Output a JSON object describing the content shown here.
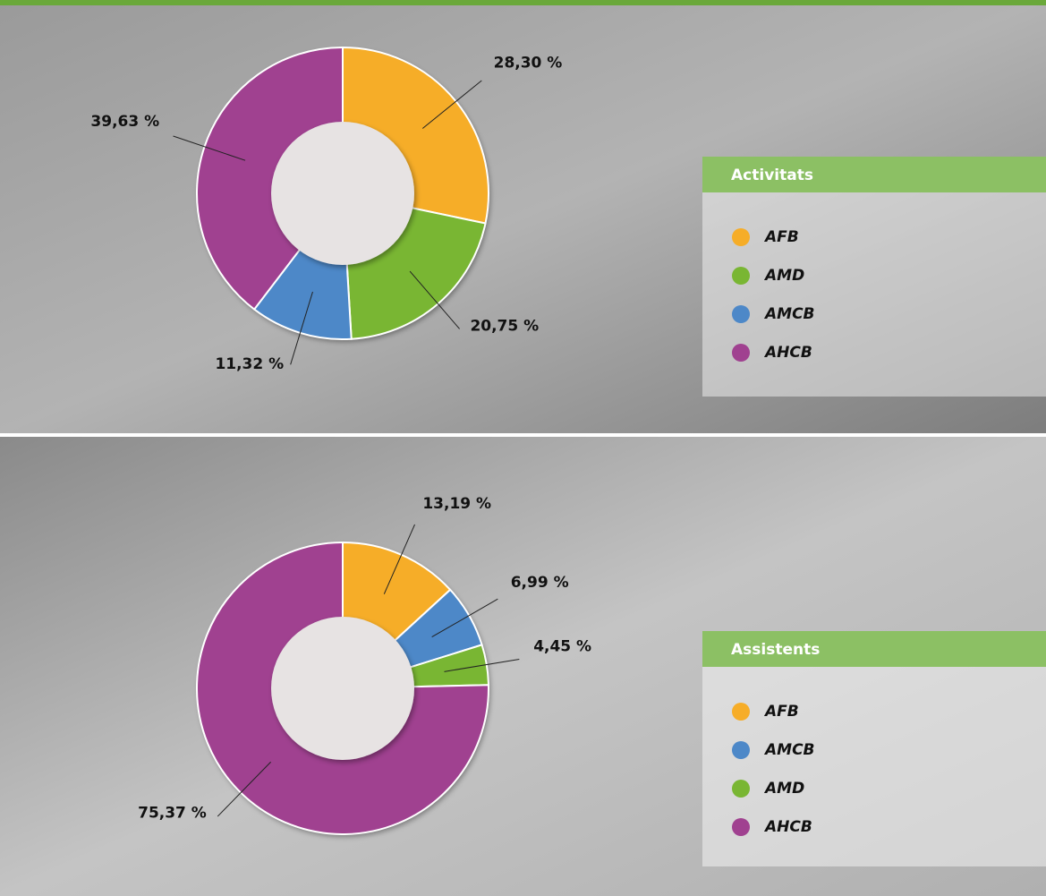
{
  "chart_data": [
    {
      "type": "pie",
      "title": "Activitats",
      "categories": [
        "AFB",
        "AMD",
        "AMCB",
        "AHCB"
      ],
      "values": [
        28.3,
        20.75,
        11.32,
        39.63
      ],
      "value_labels": [
        "28,30 %",
        "20,75 %",
        "11,32 %",
        "39,63 %"
      ],
      "colors": [
        "#f6ad28",
        "#79b633",
        "#4d88c8",
        "#a04190"
      ]
    },
    {
      "type": "pie",
      "title": "Assistents",
      "categories": [
        "AFB",
        "AMCB",
        "AMD",
        "AHCB"
      ],
      "values": [
        13.19,
        6.99,
        4.45,
        75.37
      ],
      "value_labels": [
        "13,19 %",
        "6,99 %",
        "4,45 %",
        "75,37 %"
      ],
      "colors": [
        "#f6ad28",
        "#4d88c8",
        "#79b633",
        "#a04190"
      ]
    }
  ]
}
